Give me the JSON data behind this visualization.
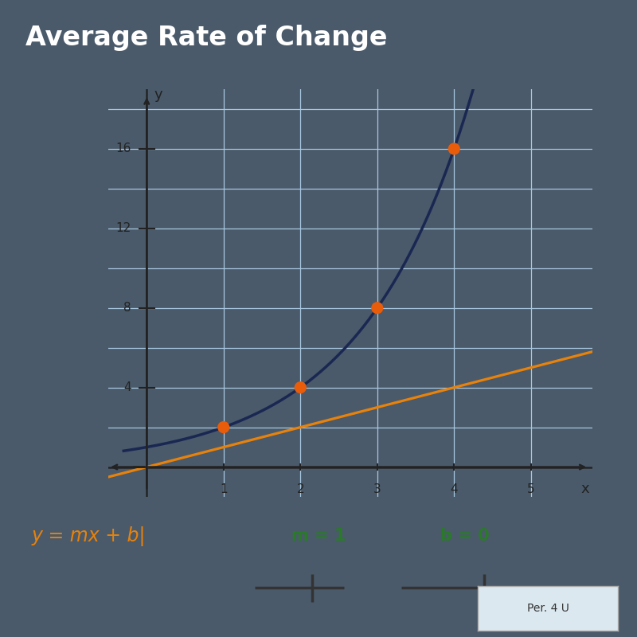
{
  "title": "Average Rate of Change",
  "curve_color": "#1a2752",
  "line_color": "#e8820a",
  "line_m": 1,
  "line_b": 0,
  "dot_color": "#e85c0a",
  "dot_size": 120,
  "curve_points_x": [
    1,
    2,
    3,
    4
  ],
  "curve_points_y": [
    2,
    4,
    8,
    16
  ],
  "xlim": [
    -0.5,
    5.8
  ],
  "ylim": [
    -1.5,
    19
  ],
  "xticks": [
    1,
    2,
    3,
    4,
    5
  ],
  "yticks": [
    4,
    8,
    12,
    16
  ],
  "grid_color": "#a8c8e0",
  "bg_plot_color": "#dff0e8",
  "bg_outer_color": "#c8d8c8",
  "title_bg_color": "#2c3e6e",
  "title_color": "#ffffff",
  "title_fontsize": 24,
  "formula_text": "y = mx + b",
  "m_text": "m = 1",
  "b_text": "b = 0",
  "formula_color": "#e8820a",
  "mb_color": "#2a7a2a",
  "bottom_bg_color": "#d8e8d8",
  "outer_dark_color": "#4a5a6a"
}
